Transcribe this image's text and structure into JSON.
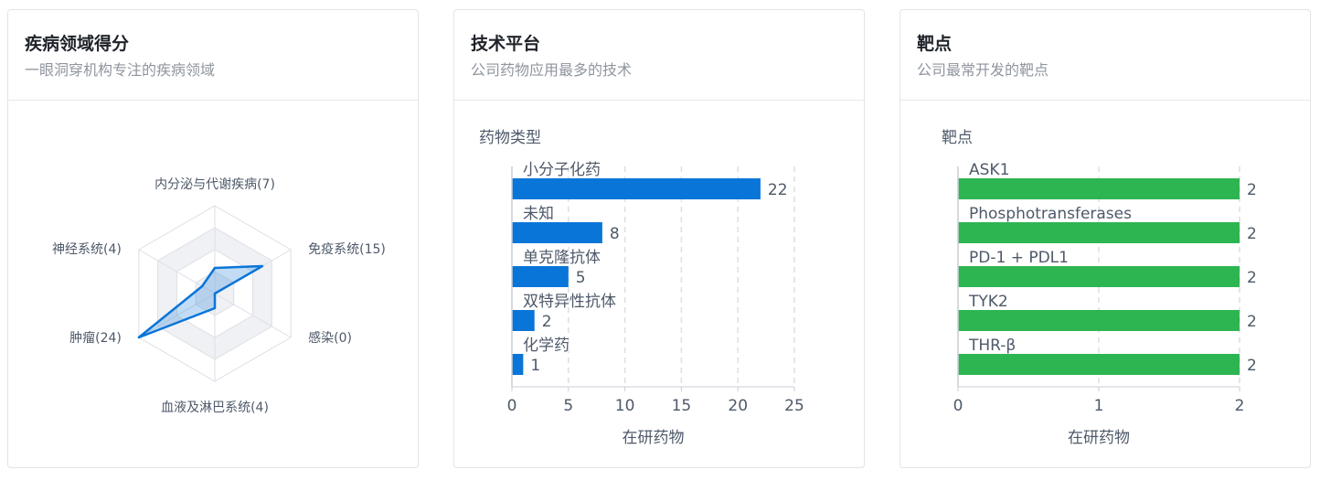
{
  "cards": [
    {
      "title": "疾病领域得分",
      "subtitle": "一眼洞穿机构专注的疾病领域"
    },
    {
      "title": "技术平台",
      "subtitle": "公司药物应用最多的技术"
    },
    {
      "title": "靶点",
      "subtitle": "公司最常开发的靶点"
    }
  ],
  "chart_data": [
    {
      "type": "radar",
      "axes": [
        {
          "label": "内分泌与代谢疾病(7)",
          "value": 7
        },
        {
          "label": "免疫系统(15)",
          "value": 15
        },
        {
          "label": "感染(0)",
          "value": 0
        },
        {
          "label": "血液及淋巴系统(4)",
          "value": 4
        },
        {
          "label": "肿瘤(24)",
          "value": 24
        },
        {
          "label": "神经系统(4)",
          "value": 4
        }
      ],
      "max": 24,
      "rings": 4,
      "color": "#0a75d8"
    },
    {
      "type": "bar",
      "orientation": "horizontal",
      "ylabel": "药物类型",
      "xlabel": "在研药物",
      "categories": [
        "小分子化药",
        "未知",
        "单克隆抗体",
        "双特异性抗体",
        "化学药"
      ],
      "values": [
        22,
        8,
        5,
        2,
        1
      ],
      "xlim": [
        0,
        25
      ],
      "xticks": [
        0,
        5,
        10,
        15,
        20,
        25
      ],
      "color": "#0a75d8"
    },
    {
      "type": "bar",
      "orientation": "horizontal",
      "ylabel": "靶点",
      "xlabel": "在研药物",
      "categories": [
        "ASK1",
        "Phosphotransferases",
        "PD-1 + PDL1",
        "TYK2",
        "THR-β"
      ],
      "values": [
        2,
        2,
        2,
        2,
        2
      ],
      "xlim": [
        0,
        2
      ],
      "xticks": [
        0,
        1,
        2
      ],
      "color": "#2db552"
    }
  ]
}
